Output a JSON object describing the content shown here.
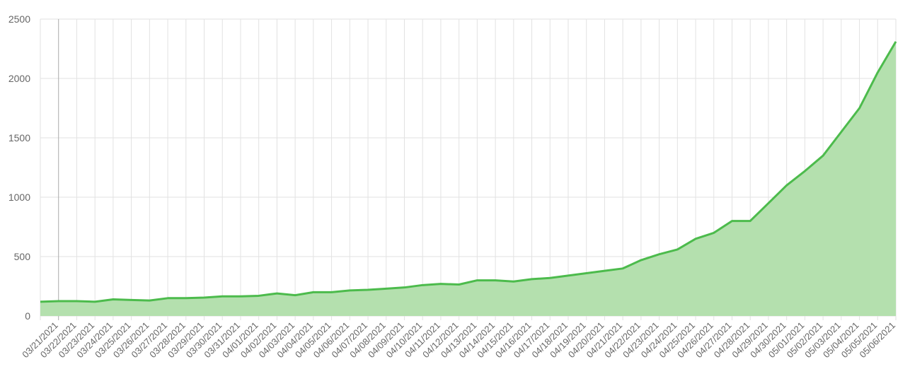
{
  "chart_data": {
    "type": "area",
    "categories": [
      null,
      "03/21/2021",
      "03/22/2021",
      "03/23/2021",
      "03/24/2021",
      "03/25/2021",
      "03/26/2021",
      "03/27/2021",
      "03/28/2021",
      "03/29/2021",
      "03/30/2021",
      "03/31/2021",
      "04/01/2021",
      "04/02/2021",
      "04/03/2021",
      "04/04/2021",
      "04/05/2021",
      "04/06/2021",
      "04/07/2021",
      "04/08/2021",
      "04/09/2021",
      "04/10/2021",
      "04/11/2021",
      "04/12/2021",
      "04/13/2021",
      "04/14/2021",
      "04/15/2021",
      "04/16/2021",
      "04/17/2021",
      "04/18/2021",
      "04/19/2021",
      "04/20/2021",
      "04/21/2021",
      "04/22/2021",
      "04/23/2021",
      "04/24/2021",
      "04/25/2021",
      "04/26/2021",
      "04/27/2021",
      "04/28/2021",
      "04/29/2021",
      "04/30/2021",
      "05/01/2021",
      "05/02/2021",
      "05/03/2021",
      "05/04/2021",
      "05/05/2021",
      "05/06/2021"
    ],
    "values": [
      120,
      125,
      125,
      120,
      140,
      135,
      130,
      150,
      150,
      155,
      165,
      165,
      170,
      190,
      175,
      200,
      200,
      215,
      220,
      230,
      240,
      260,
      270,
      265,
      300,
      300,
      290,
      310,
      320,
      340,
      360,
      380,
      400,
      470,
      520,
      560,
      650,
      700,
      800,
      800,
      950,
      1100,
      1220,
      1350,
      1550,
      1750,
      2050,
      2310
    ],
    "color": "#4cbb4c",
    "fill": "#b4e0ae",
    "ylim": [
      0,
      2500
    ],
    "yticks": [
      0,
      500,
      1000,
      1500,
      2000,
      2500
    ],
    "grid": true
  }
}
